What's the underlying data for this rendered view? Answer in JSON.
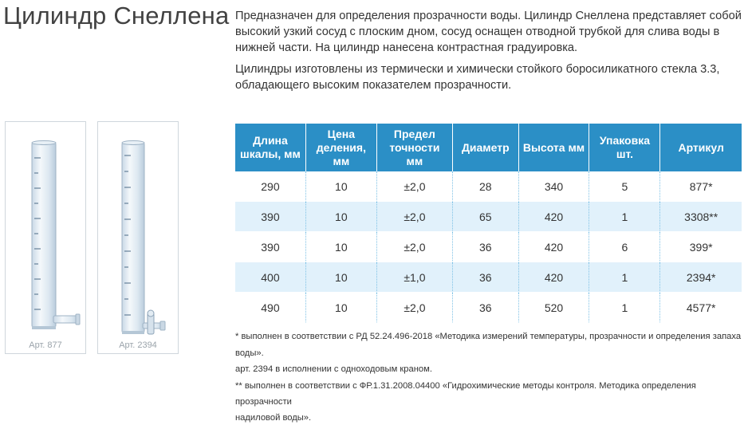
{
  "title": "Цилиндр Снеллена",
  "description": [
    "Предназначен для определения прозрачности воды. Цилиндр Снеллена представляет собой высокий узкий сосуд с плоским дном, сосуд оснащен отводной трубкой для слива воды в нижней части. На цилиндр нанесена контрастная градуировка.",
    "Цилиндры изготовлены из термически и химически стойкого боросиликатного стекла 3.3, обладающего высоким показателем прозрачности."
  ],
  "images": [
    {
      "caption": "Арт. 877"
    },
    {
      "caption": "Арт. 2394"
    }
  ],
  "table": {
    "headers": [
      "Длина шкалы, мм",
      "Цена деления, мм",
      "Предел точности мм",
      "Диаметр",
      "Высота мм",
      "Упаковка шт.",
      "Артикул"
    ],
    "rows": [
      [
        "290",
        "10",
        "±2,0",
        "28",
        "340",
        "5",
        "877*"
      ],
      [
        "390",
        "10",
        "±2,0",
        "65",
        "420",
        "1",
        "3308**"
      ],
      [
        "390",
        "10",
        "±2,0",
        "36",
        "420",
        "6",
        "399*"
      ],
      [
        "400",
        "10",
        "±1,0",
        "36",
        "420",
        "1",
        "2394*"
      ],
      [
        "490",
        "10",
        "±2,0",
        "36",
        "520",
        "1",
        "4577*"
      ]
    ]
  },
  "notes": [
    "* выполнен в соответствии с РД 52.24.496-2018 «Методика измерений температуры, прозрачности и определения запаха воды».",
    "арт. 2394 в исполнении с одноходовым краном.",
    "** выполнен в соответствии с ФР.1.31.2008.04400 «Гидрохимические методы контроля. Методика определения прозрачности",
    "надиловой воды»."
  ],
  "colors": {
    "header_bg": "#2b8fc6",
    "row_alt_bg": "#e1f1fb",
    "title_color": "#424242"
  }
}
